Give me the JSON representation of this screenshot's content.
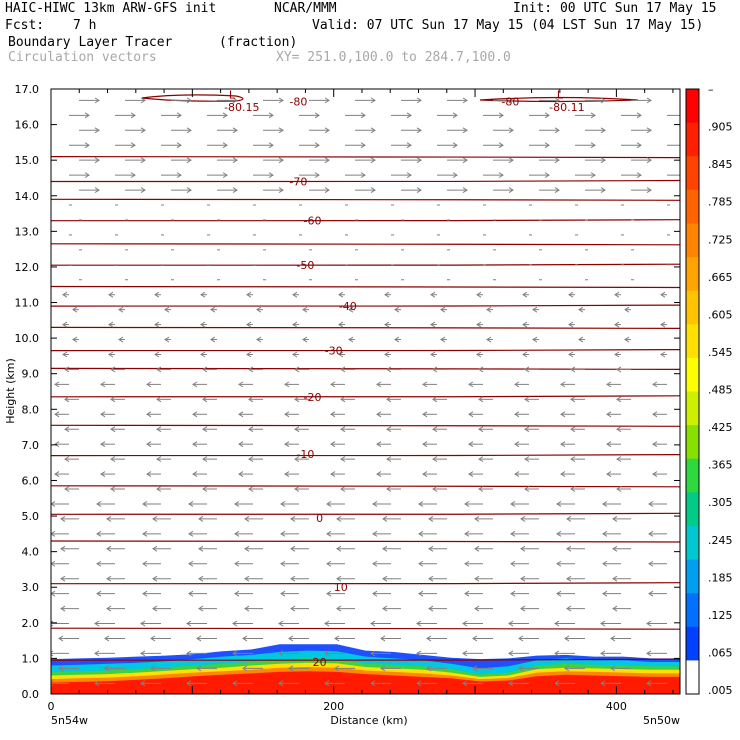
{
  "header": {
    "model": "HAIC-HIWC 13km ARW-GFS init",
    "org": "NCAR/MMM",
    "init": "Init: 00 UTC Sun 17 May 15",
    "fcst_label": "Fcst:",
    "fcst_value": "7 h",
    "valid": "Valid: 07 UTC Sun 17 May 15 (04 LST Sun 17 May 15)",
    "field": "Boundary Layer Tracer",
    "units": "(fraction)",
    "vectors": "Circulation vectors",
    "xy": "XY= 251.0,100.0 to 284.7,100.0"
  },
  "colors": {
    "contour": "#8b0000",
    "vector": "#808080",
    "frame": "#000000"
  },
  "chart_data": {
    "type": "heatmap",
    "title": "Boundary Layer Tracer",
    "units": "(fraction)",
    "xlabel": "Distance (km)",
    "ylabel": "Height (km)",
    "xlim": [
      0,
      445
    ],
    "ylim": [
      0,
      17
    ],
    "x_ticks": [
      "0",
      "200",
      "400"
    ],
    "x_tick_values": [
      0,
      200,
      400
    ],
    "x_end_labels": [
      "5n54w",
      "5n50w"
    ],
    "y_ticks": [
      "0.0",
      "1.0",
      "2.0",
      "3.0",
      "4.0",
      "5.0",
      "6.0",
      "7.0",
      "8.0",
      "9.0",
      "10.0",
      "11.0",
      "12.0",
      "13.0",
      "14.0",
      "15.0",
      "16.0",
      "17.0"
    ],
    "colorbar": {
      "labels": [
        "–",
        ".905",
        ".845",
        ".785",
        ".725",
        ".665",
        ".605",
        ".545",
        ".485",
        ".425",
        ".365",
        ".305",
        ".245",
        ".185",
        ".125",
        ".065",
        ".005"
      ],
      "colors": [
        "#ff0000",
        "#ff2000",
        "#ff4400",
        "#ff6400",
        "#ff8400",
        "#ffa400",
        "#ffc400",
        "#ffe000",
        "#ffff00",
        "#ccf000",
        "#88e000",
        "#30d840",
        "#00cc88",
        "#00c8d0",
        "#00a0f0",
        "#0070ff",
        "#0040ff",
        "#ffffff"
      ]
    },
    "tracer_layers": [
      {
        "name": "blue",
        "color": "#1e50ff",
        "top_km": [
          0.98,
          1.0,
          1.02,
          1.05,
          1.08,
          1.12,
          1.2,
          1.25,
          1.4,
          1.4,
          1.4,
          1.22,
          1.18,
          1.1,
          1.02,
          0.98,
          1.0,
          1.08,
          1.1,
          1.05,
          1.05,
          1.0,
          1.0
        ]
      },
      {
        "name": "cyan",
        "color": "#00c8e0",
        "top_km": [
          0.8,
          0.82,
          0.85,
          0.88,
          0.92,
          0.98,
          1.05,
          1.1,
          1.18,
          1.22,
          1.2,
          1.05,
          1.0,
          0.95,
          0.85,
          0.72,
          0.78,
          0.95,
          1.0,
          0.95,
          0.95,
          0.9,
          0.9
        ]
      },
      {
        "name": "green",
        "color": "#40d040",
        "top_km": [
          0.62,
          0.64,
          0.66,
          0.7,
          0.75,
          0.8,
          0.85,
          0.9,
          0.98,
          1.0,
          0.98,
          0.85,
          0.82,
          0.78,
          0.7,
          0.55,
          0.6,
          0.8,
          0.85,
          0.82,
          0.8,
          0.78,
          0.78
        ]
      },
      {
        "name": "yellow",
        "color": "#ffe000",
        "top_km": [
          0.52,
          0.54,
          0.56,
          0.6,
          0.65,
          0.7,
          0.74,
          0.8,
          0.85,
          0.88,
          0.86,
          0.76,
          0.72,
          0.68,
          0.6,
          0.48,
          0.52,
          0.7,
          0.74,
          0.72,
          0.7,
          0.68,
          0.68
        ]
      },
      {
        "name": "orange",
        "color": "#ff8800",
        "top_km": [
          0.42,
          0.44,
          0.46,
          0.5,
          0.55,
          0.6,
          0.64,
          0.68,
          0.74,
          0.76,
          0.74,
          0.66,
          0.62,
          0.58,
          0.52,
          0.42,
          0.45,
          0.6,
          0.64,
          0.62,
          0.6,
          0.58,
          0.58
        ]
      },
      {
        "name": "red",
        "color": "#ff1a00",
        "top_km": [
          0.32,
          0.34,
          0.36,
          0.4,
          0.44,
          0.5,
          0.54,
          0.58,
          0.62,
          0.64,
          0.62,
          0.56,
          0.52,
          0.48,
          0.44,
          0.35,
          0.38,
          0.5,
          0.54,
          0.52,
          0.5,
          0.48,
          0.48
        ]
      }
    ],
    "contour_heights_km": [
      0.95,
      1.85,
      3.1,
      4.3,
      5.05,
      5.85,
      6.7,
      7.55,
      8.35,
      9.15,
      9.65,
      10.3,
      10.9,
      11.45,
      12.05,
      12.65,
      13.3,
      13.9,
      14.4,
      15.1
    ],
    "contour_labels": [
      {
        "text": "20",
        "x_km": 190,
        "y_km": 0.9
      },
      {
        "text": "10",
        "x_km": 205,
        "y_km": 3.0
      },
      {
        "text": "0",
        "x_km": 190,
        "y_km": 4.95
      },
      {
        "text": "-10",
        "x_km": 180,
        "y_km": 6.75
      },
      {
        "text": "-20",
        "x_km": 185,
        "y_km": 8.35
      },
      {
        "text": "-30",
        "x_km": 200,
        "y_km": 9.65
      },
      {
        "text": "-40",
        "x_km": 210,
        "y_km": 10.9
      },
      {
        "text": "-50",
        "x_km": 180,
        "y_km": 12.05
      },
      {
        "text": "-60",
        "x_km": 185,
        "y_km": 13.3
      },
      {
        "text": "-70",
        "x_km": 175,
        "y_km": 14.4
      },
      {
        "text": "-80",
        "x_km": 175,
        "y_km": 16.65
      },
      {
        "text": "-80",
        "x_km": 325,
        "y_km": 16.65
      },
      {
        "text": "-80.15",
        "x_km": 135,
        "y_km": 16.5
      },
      {
        "text": "-80.11",
        "x_km": 365,
        "y_km": 16.5
      },
      {
        "text": "L",
        "x_km": 128,
        "y_km": 16.85
      },
      {
        "text": "L",
        "x_km": 360,
        "y_km": 16.85
      }
    ]
  }
}
